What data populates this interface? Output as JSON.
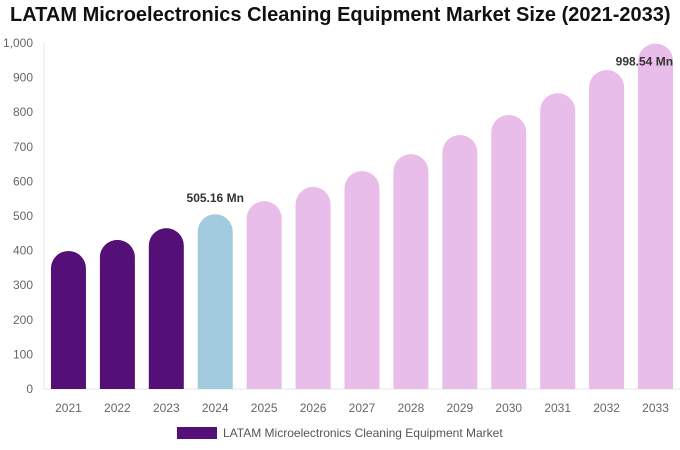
{
  "chart_data": {
    "type": "bar",
    "title": "LATAM Microelectronics Cleaning Equipment Market Size (2021-2033)",
    "categories": [
      "2021",
      "2022",
      "2023",
      "2024",
      "2025",
      "2026",
      "2027",
      "2028",
      "2029",
      "2030",
      "2031",
      "2032",
      "2033"
    ],
    "series": [
      {
        "name": "LATAM Microelectronics Cleaning Equipment Market",
        "values": [
          399,
          431,
          465,
          505.16,
          543,
          584,
          630,
          679,
          734,
          792,
          855,
          922,
          998.54
        ]
      }
    ],
    "data_labels": {
      "3": "505.16 Mn",
      "12": "998.54 Mn"
    },
    "ylim": [
      0,
      1000
    ],
    "yticks": [
      0,
      100,
      200,
      300,
      400,
      500,
      600,
      700,
      800,
      900,
      1000
    ],
    "ytick_labels": [
      "0",
      "100",
      "200",
      "300",
      "400",
      "500",
      "600",
      "700",
      "800",
      "900",
      "1,000"
    ],
    "grid": false,
    "legend_position": "bottom",
    "colors": {
      "historical": "#541076",
      "current": "#a3cbdf",
      "forecast": "#e8bde9"
    }
  }
}
